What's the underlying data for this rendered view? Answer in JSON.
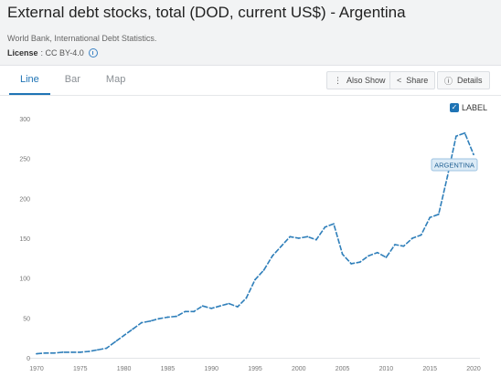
{
  "header": {
    "title": "External debt stocks, total (DOD, current US$) - Argentina",
    "source": "World Bank, International Debt Statistics.",
    "license_label": "License",
    "license_value": ": CC BY-4.0"
  },
  "tabs": [
    {
      "label": "Line",
      "active": true
    },
    {
      "label": "Bar",
      "active": false
    },
    {
      "label": "Map",
      "active": false
    }
  ],
  "toolbar": {
    "also_show": "Also Show",
    "share": "Share",
    "details": "Details"
  },
  "label_toggle": {
    "label": "LABEL",
    "checked": true
  },
  "colors": {
    "line": "#2f7fba",
    "accent": "#1f74b5"
  },
  "chart_data": {
    "type": "line",
    "title": "",
    "xlabel": "",
    "ylabel": "",
    "xlim": [
      1970,
      2020
    ],
    "ylim": [
      0,
      300
    ],
    "x_ticks": [
      1970,
      1975,
      1980,
      1985,
      1990,
      1995,
      2000,
      2005,
      2010,
      2015,
      2020
    ],
    "y_ticks": [
      0,
      50,
      100,
      150,
      200,
      250,
      300
    ],
    "grid": false,
    "series": [
      {
        "name": "ARGENTINA",
        "x": [
          1970,
          1971,
          1972,
          1973,
          1974,
          1975,
          1976,
          1977,
          1978,
          1979,
          1980,
          1981,
          1982,
          1983,
          1984,
          1985,
          1986,
          1987,
          1988,
          1989,
          1990,
          1991,
          1992,
          1993,
          1994,
          1995,
          1996,
          1997,
          1998,
          1999,
          2000,
          2001,
          2002,
          2003,
          2004,
          2005,
          2006,
          2007,
          2008,
          2009,
          2010,
          2011,
          2012,
          2013,
          2014,
          2015,
          2016,
          2017,
          2018,
          2019,
          2020
        ],
        "y": [
          5,
          6,
          6,
          7,
          7,
          7,
          8,
          10,
          12,
          20,
          28,
          36,
          44,
          46,
          49,
          51,
          52,
          58,
          58,
          65,
          62,
          65,
          68,
          64,
          75,
          98,
          110,
          128,
          140,
          152,
          150,
          152,
          148,
          164,
          168,
          130,
          118,
          120,
          128,
          132,
          126,
          142,
          140,
          150,
          154,
          176,
          180,
          227,
          278,
          282,
          255
        ]
      }
    ]
  }
}
